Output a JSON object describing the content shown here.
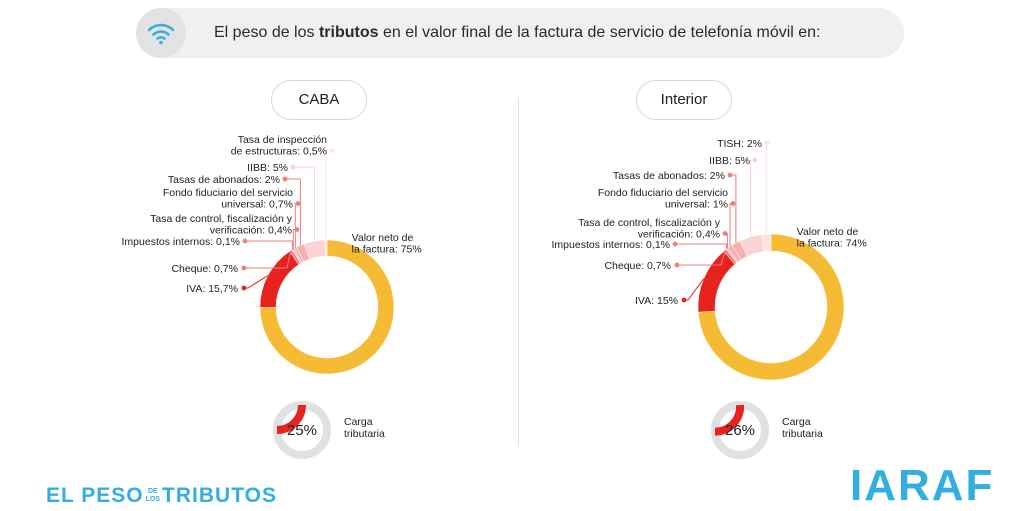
{
  "header": {
    "icon": "wifi-icon",
    "title_pre": "El peso de los ",
    "title_bold": "tributos",
    "title_post": " en el valor final de la factura de servicio de telefonía móvil  en:"
  },
  "colors": {
    "net": "#f6bb35",
    "iva": "#e8231f",
    "cheque": "#f17d7d",
    "small": "#f6b0b0",
    "iibb": "#fbd3d3",
    "tiny": "#fde4e4",
    "kpi": "#e8231f",
    "kpi_track": "#e1e1e1",
    "brand": "#33aee0"
  },
  "chart_data": [
    {
      "type": "pie",
      "title": "CABA",
      "slices": [
        {
          "label": "Valor neto de la factura",
          "value": 75
        },
        {
          "label": "IVA",
          "value": 15.7
        },
        {
          "label": "Cheque",
          "value": 0.7
        },
        {
          "label": "Impuestos internos",
          "value": 0.1
        },
        {
          "label": "Tasa de control, fiscalización y verificación",
          "value": 0.4
        },
        {
          "label": "Fondo fiduciario del servicio universal",
          "value": 0.7
        },
        {
          "label": "Tasas de abonados",
          "value": 2
        },
        {
          "label": "IIBB",
          "value": 5
        },
        {
          "label": "Tasa de inspección de estructuras",
          "value": 0.5
        }
      ],
      "labels": {
        "net": [
          "Valor neto de",
          "la factura: 75%"
        ],
        "iva": [
          "IVA: 15,7%"
        ],
        "cheque": [
          "Cheque: 0,7%"
        ],
        "internos": [
          "Impuestos internos: 0,1%"
        ],
        "control": [
          "Tasa de control, fiscalización y",
          "verificación: 0,4%"
        ],
        "fondo": [
          "Fondo fiduciario del servicio",
          "universal: 0,7%"
        ],
        "abonados": [
          "Tasas de abonados: 2%"
        ],
        "iibb": [
          "IIBB: 5%"
        ],
        "last": [
          "Tasa de inspección",
          "de estructuras: 0,5%"
        ]
      },
      "kpi": {
        "value": 25,
        "text": "25%",
        "caption": [
          "Carga",
          "tributaria"
        ]
      }
    },
    {
      "type": "pie",
      "title": "Interior",
      "slices": [
        {
          "label": "Valor neto de la factura",
          "value": 74
        },
        {
          "label": "IVA",
          "value": 15
        },
        {
          "label": "Cheque",
          "value": 0.7
        },
        {
          "label": "Impuestos internos",
          "value": 0.1
        },
        {
          "label": "Tasa de control, fiscalización y verificación",
          "value": 0.4
        },
        {
          "label": "Fondo fiduciario del servicio universal",
          "value": 1
        },
        {
          "label": "Tasas de abonados",
          "value": 2
        },
        {
          "label": "IIBB",
          "value": 5
        },
        {
          "label": "TISH",
          "value": 2
        }
      ],
      "labels": {
        "net": [
          "Valor neto de",
          "la factura: 74%"
        ],
        "iva": [
          "IVA: 15%"
        ],
        "cheque": [
          "Cheque: 0,7%"
        ],
        "internos": [
          "Impuestos internos: 0,1%"
        ],
        "control": [
          "Tasa de control, fiscalización y",
          "verificación: 0,4%"
        ],
        "fondo": [
          "Fondo fiduciario del servicio",
          "universal: 1%"
        ],
        "abonados": [
          "Tasas de abonados: 2%"
        ],
        "iibb": [
          "IIBB: 5%"
        ],
        "last": [
          "TISH: 2%"
        ]
      },
      "kpi": {
        "value": 26,
        "text": "26%",
        "caption": [
          "Carga",
          "tributaria"
        ]
      }
    }
  ],
  "footer": {
    "left_pre": "EL PESO",
    "left_small_top": "DE",
    "left_small_bottom": "LOS",
    "left_post": "TRIBUTOS",
    "right_logo": "IARAF"
  }
}
